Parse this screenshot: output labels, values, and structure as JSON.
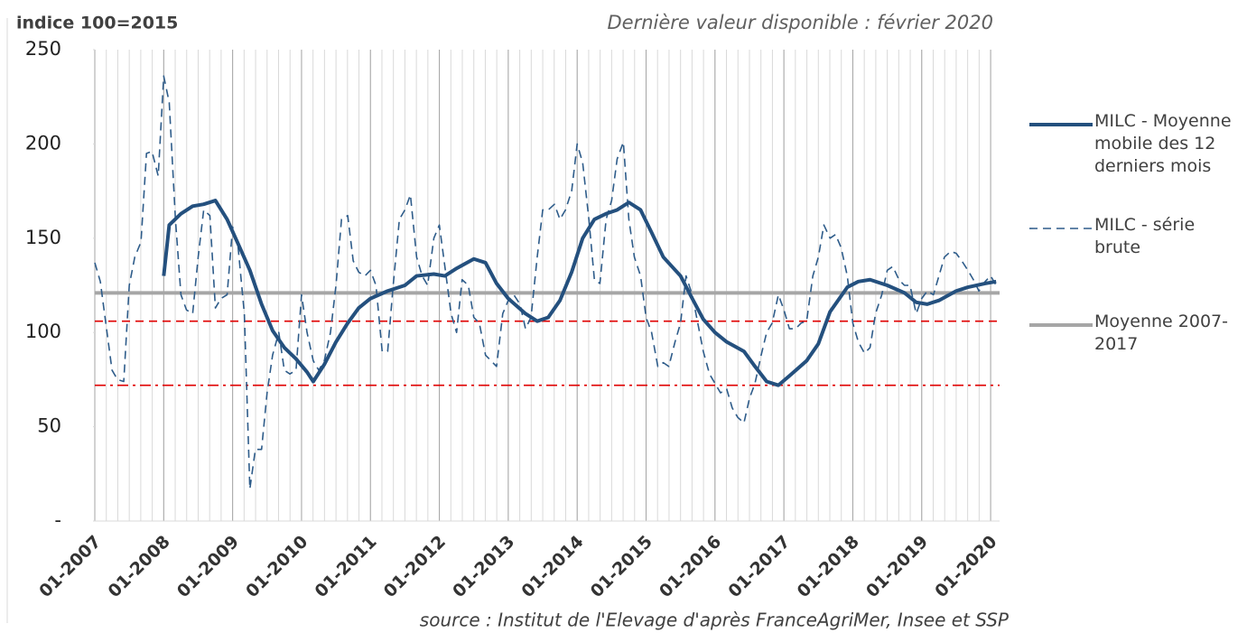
{
  "chart_data": {
    "type": "line",
    "title": "indice 100=2015",
    "subtitle": "Dernière valeur disponible : février 2020",
    "source": "source : Institut de l'Elevage d'après FranceAgriMer, Insee et SSP",
    "xlim": [
      2007,
      2020.13
    ],
    "xticks": [
      {
        "value": 2007,
        "label": "01-2007"
      },
      {
        "value": 2008,
        "label": "01-2008"
      },
      {
        "value": 2009,
        "label": "01-2009"
      },
      {
        "value": 2010,
        "label": "01-2010"
      },
      {
        "value": 2011,
        "label": "01-2011"
      },
      {
        "value": 2012,
        "label": "01-2012"
      },
      {
        "value": 2013,
        "label": "01-2013"
      },
      {
        "value": 2014,
        "label": "01-2014"
      },
      {
        "value": 2015,
        "label": "01-2015"
      },
      {
        "value": 2016,
        "label": "01-2016"
      },
      {
        "value": 2017,
        "label": "01-2017"
      },
      {
        "value": 2018,
        "label": "01-2018"
      },
      {
        "value": 2019,
        "label": "01-2019"
      },
      {
        "value": 2020,
        "label": "01-2020"
      }
    ],
    "ylim": [
      0,
      250
    ],
    "yticks": [
      {
        "value": 0,
        "label": "-"
      },
      50,
      100,
      150,
      200,
      250
    ],
    "grid": true,
    "legend": "right",
    "hlines": [
      {
        "value": 106,
        "color": "#e00000",
        "style": "dashed"
      },
      {
        "value": 72,
        "color": "#e00000",
        "style": "dashdot"
      }
    ],
    "series": [
      {
        "name": "MILC - Moyenne mobile des 12 derniers mois",
        "color": "#24507e",
        "style": "solid",
        "width": 4,
        "x": [
          2008.0,
          2008.08,
          2008.25,
          2008.42,
          2008.58,
          2008.75,
          2008.92,
          2009.08,
          2009.25,
          2009.42,
          2009.58,
          2009.75,
          2009.92,
          2010.08,
          2010.17,
          2010.33,
          2010.5,
          2010.67,
          2010.83,
          2011.0,
          2011.25,
          2011.5,
          2011.67,
          2011.92,
          2012.08,
          2012.25,
          2012.5,
          2012.67,
          2012.83,
          2013.0,
          2013.25,
          2013.42,
          2013.58,
          2013.75,
          2013.92,
          2014.08,
          2014.25,
          2014.42,
          2014.58,
          2014.75,
          2014.92,
          2015.08,
          2015.25,
          2015.5,
          2015.67,
          2015.83,
          2016.0,
          2016.17,
          2016.42,
          2016.58,
          2016.75,
          2016.92,
          2017.08,
          2017.33,
          2017.5,
          2017.67,
          2017.92,
          2018.08,
          2018.25,
          2018.5,
          2018.75,
          2018.92,
          2019.08,
          2019.25,
          2019.5,
          2019.67,
          2019.92,
          2020.08
        ],
        "values": [
          130,
          157,
          163,
          167,
          168,
          170,
          160,
          147,
          133,
          115,
          101,
          92,
          86,
          79,
          74,
          83,
          95,
          105,
          113,
          118,
          122,
          125,
          130,
          131,
          130,
          134,
          139,
          137,
          126,
          118,
          110,
          106,
          108,
          117,
          132,
          150,
          160,
          163,
          165,
          169,
          165,
          153,
          140,
          130,
          118,
          107,
          100,
          95,
          90,
          82,
          74,
          72,
          77,
          85,
          94,
          111,
          124,
          127,
          128,
          125,
          121,
          116,
          115,
          117,
          122,
          124,
          126,
          127
        ]
      },
      {
        "name": "MILC - série brute",
        "color": "#2e5c8a",
        "style": "dashed",
        "width": 1.6,
        "x": [
          2007.0,
          2007.08,
          2007.17,
          2007.25,
          2007.33,
          2007.42,
          2007.5,
          2007.58,
          2007.67,
          2007.75,
          2007.83,
          2007.92,
          2008.0,
          2008.08,
          2008.17,
          2008.25,
          2008.33,
          2008.42,
          2008.5,
          2008.58,
          2008.67,
          2008.75,
          2008.83,
          2008.92,
          2009.0,
          2009.08,
          2009.17,
          2009.25,
          2009.33,
          2009.42,
          2009.5,
          2009.58,
          2009.67,
          2009.75,
          2009.83,
          2009.92,
          2010.0,
          2010.08,
          2010.17,
          2010.25,
          2010.33,
          2010.42,
          2010.5,
          2010.58,
          2010.67,
          2010.75,
          2010.83,
          2010.92,
          2011.0,
          2011.08,
          2011.17,
          2011.25,
          2011.33,
          2011.42,
          2011.5,
          2011.58,
          2011.67,
          2011.75,
          2011.83,
          2011.92,
          2012.0,
          2012.08,
          2012.17,
          2012.25,
          2012.33,
          2012.42,
          2012.5,
          2012.58,
          2012.67,
          2012.75,
          2012.83,
          2012.92,
          2013.0,
          2013.08,
          2013.17,
          2013.25,
          2013.33,
          2013.42,
          2013.5,
          2013.58,
          2013.67,
          2013.75,
          2013.83,
          2013.92,
          2014.0,
          2014.08,
          2014.17,
          2014.25,
          2014.33,
          2014.42,
          2014.5,
          2014.58,
          2014.67,
          2014.75,
          2014.83,
          2014.92,
          2015.0,
          2015.08,
          2015.17,
          2015.25,
          2015.33,
          2015.42,
          2015.5,
          2015.58,
          2015.67,
          2015.75,
          2015.83,
          2015.92,
          2016.0,
          2016.08,
          2016.17,
          2016.25,
          2016.33,
          2016.42,
          2016.5,
          2016.58,
          2016.67,
          2016.75,
          2016.83,
          2016.92,
          2017.0,
          2017.08,
          2017.17,
          2017.25,
          2017.33,
          2017.42,
          2017.5,
          2017.58,
          2017.67,
          2017.75,
          2017.83,
          2017.92,
          2018.0,
          2018.08,
          2018.17,
          2018.25,
          2018.33,
          2018.42,
          2018.5,
          2018.58,
          2018.67,
          2018.75,
          2018.83,
          2018.92,
          2019.0,
          2019.08,
          2019.17,
          2019.25,
          2019.33,
          2019.42,
          2019.5,
          2019.58,
          2019.67,
          2019.75,
          2019.83,
          2019.92,
          2020.0,
          2020.08
        ],
        "values": [
          137,
          127,
          102,
          80,
          75,
          74,
          125,
          140,
          148,
          195,
          196,
          183,
          236,
          222,
          160,
          120,
          112,
          110,
          140,
          165,
          162,
          113,
          118,
          120,
          156,
          145,
          110,
          17,
          38,
          38,
          68,
          88,
          100,
          80,
          78,
          80,
          120,
          100,
          85,
          80,
          85,
          100,
          125,
          160,
          162,
          138,
          132,
          130,
          133,
          125,
          90,
          90,
          125,
          160,
          165,
          173,
          140,
          130,
          125,
          150,
          157,
          135,
          110,
          100,
          128,
          125,
          108,
          105,
          88,
          85,
          82,
          110,
          117,
          120,
          115,
          102,
          108,
          140,
          165,
          165,
          168,
          160,
          165,
          175,
          200,
          190,
          160,
          128,
          126,
          160,
          170,
          192,
          201,
          160,
          140,
          130,
          108,
          100,
          82,
          84,
          82,
          95,
          105,
          130,
          120,
          105,
          90,
          78,
          73,
          68,
          70,
          60,
          55,
          52,
          65,
          73,
          88,
          100,
          105,
          120,
          112,
          102,
          102,
          105,
          106,
          130,
          140,
          157,
          150,
          152,
          145,
          130,
          105,
          95,
          89,
          92,
          110,
          120,
          133,
          135,
          128,
          125,
          125,
          110,
          118,
          122,
          120,
          130,
          140,
          143,
          142,
          138,
          133,
          128,
          122,
          127,
          130,
          125
        ]
      },
      {
        "name": "Moyenne 2007-2017",
        "color": "#a6a6a6",
        "style": "solid",
        "width": 4,
        "x": [
          2007,
          2020.13
        ],
        "values": [
          121,
          121
        ]
      }
    ]
  }
}
